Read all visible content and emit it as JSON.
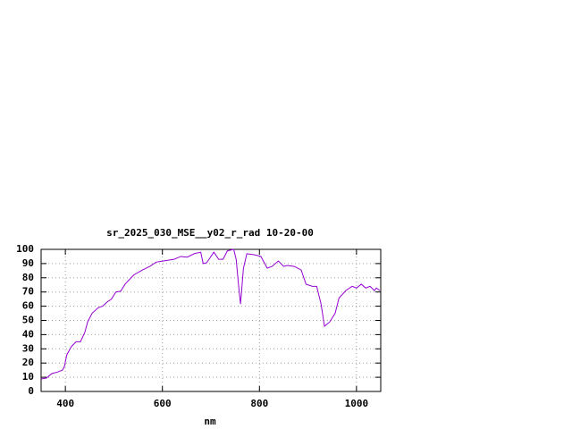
{
  "chart_data": {
    "type": "line",
    "title": "sr_2025_030_MSE__y02_r_rad 10-20-00",
    "x_label": "nm",
    "xlim": [
      350,
      1050
    ],
    "xticks": [
      400,
      600,
      800,
      1000
    ],
    "ylim": [
      0,
      100
    ],
    "yticks": [
      0,
      10,
      20,
      30,
      40,
      50,
      60,
      70,
      80,
      90,
      100
    ],
    "grid": true,
    "x": [
      350,
      361,
      372,
      385,
      394,
      398,
      403,
      412,
      422,
      431,
      440,
      446,
      455,
      468,
      477,
      486,
      495,
      504,
      514,
      523,
      541,
      559,
      574,
      587,
      605,
      624,
      638,
      651,
      666,
      679,
      684,
      691,
      706,
      716,
      725,
      734,
      747,
      752,
      758,
      761,
      767,
      774,
      789,
      803,
      816,
      826,
      839,
      850,
      857,
      872,
      886,
      896,
      909,
      918,
      927,
      934,
      945,
      956,
      964,
      978,
      991,
      1000,
      1010,
      1019,
      1028,
      1037,
      1041,
      1048
    ],
    "series": [
      {
        "color": "#9400d3",
        "values": [
          8.8,
          9.4,
          12.6,
          13.8,
          15,
          17.6,
          25.8,
          31.4,
          35,
          35,
          41.5,
          49,
          55,
          59,
          60,
          63,
          65,
          70,
          70.5,
          75.5,
          82,
          85.5,
          88,
          91,
          92,
          93,
          95,
          94.5,
          97,
          98,
          90,
          90.5,
          98,
          93,
          93,
          99,
          100,
          93,
          71,
          61.5,
          86.6,
          96.9,
          96.2,
          95,
          86.8,
          88,
          91.8,
          88,
          88.7,
          88,
          85.5,
          75.5,
          74,
          74,
          61.5,
          45.9,
          49,
          55,
          65.7,
          71,
          74,
          72.8,
          75.5,
          72.8,
          74,
          71,
          72.8,
          71
        ]
      }
    ]
  }
}
